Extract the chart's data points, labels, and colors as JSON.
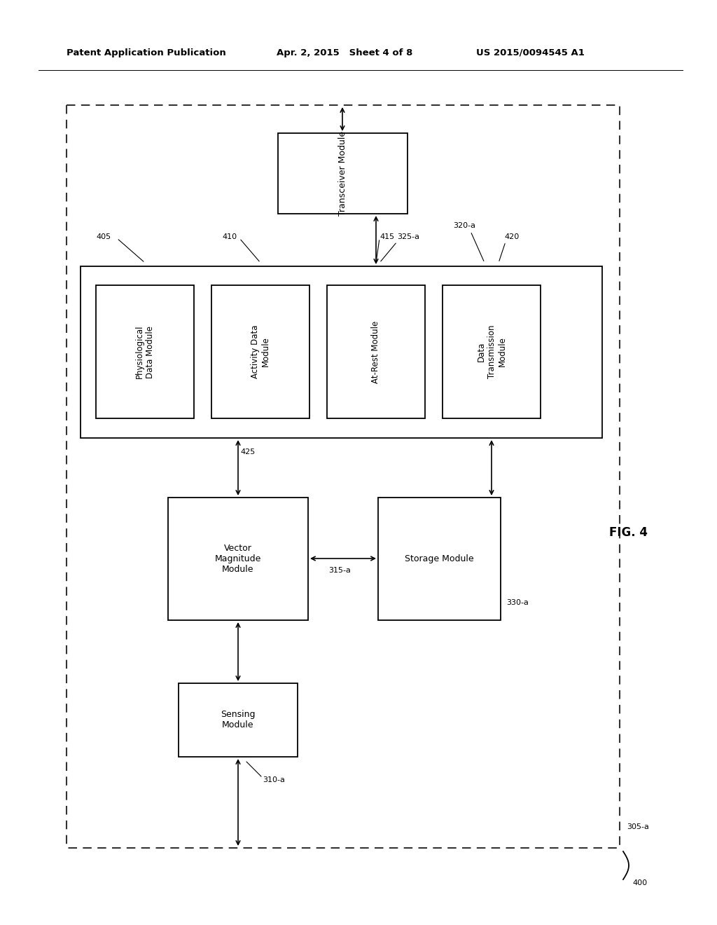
{
  "header_left": "Patent Application Publication",
  "header_mid": "Apr. 2, 2015   Sheet 4 of 8",
  "header_right": "US 2015/0094545 A1",
  "fig_label": "FIG. 4",
  "bg_color": "#ffffff",
  "boxes": {
    "transceiver": "Transceiver Module",
    "physio": "Physiological\nData Module",
    "activity": "Activity Data\nModule",
    "atrest": "At-Rest Module",
    "datatx": "Data\nTransmission\nModule",
    "vector": "Vector\nMagnitude\nModule",
    "storage": "Storage Module",
    "sensing": "Sensing\nModule"
  },
  "refs": {
    "outer": "305-a",
    "transceiver": "325-a",
    "physio": "405",
    "activity": "410",
    "atrest": "415",
    "datatx": "420",
    "datatx2": "320-a",
    "vector": "425",
    "storage": "330-a",
    "sensing": "310-a",
    "storage_conn": "315-a",
    "fig_num": "400"
  }
}
